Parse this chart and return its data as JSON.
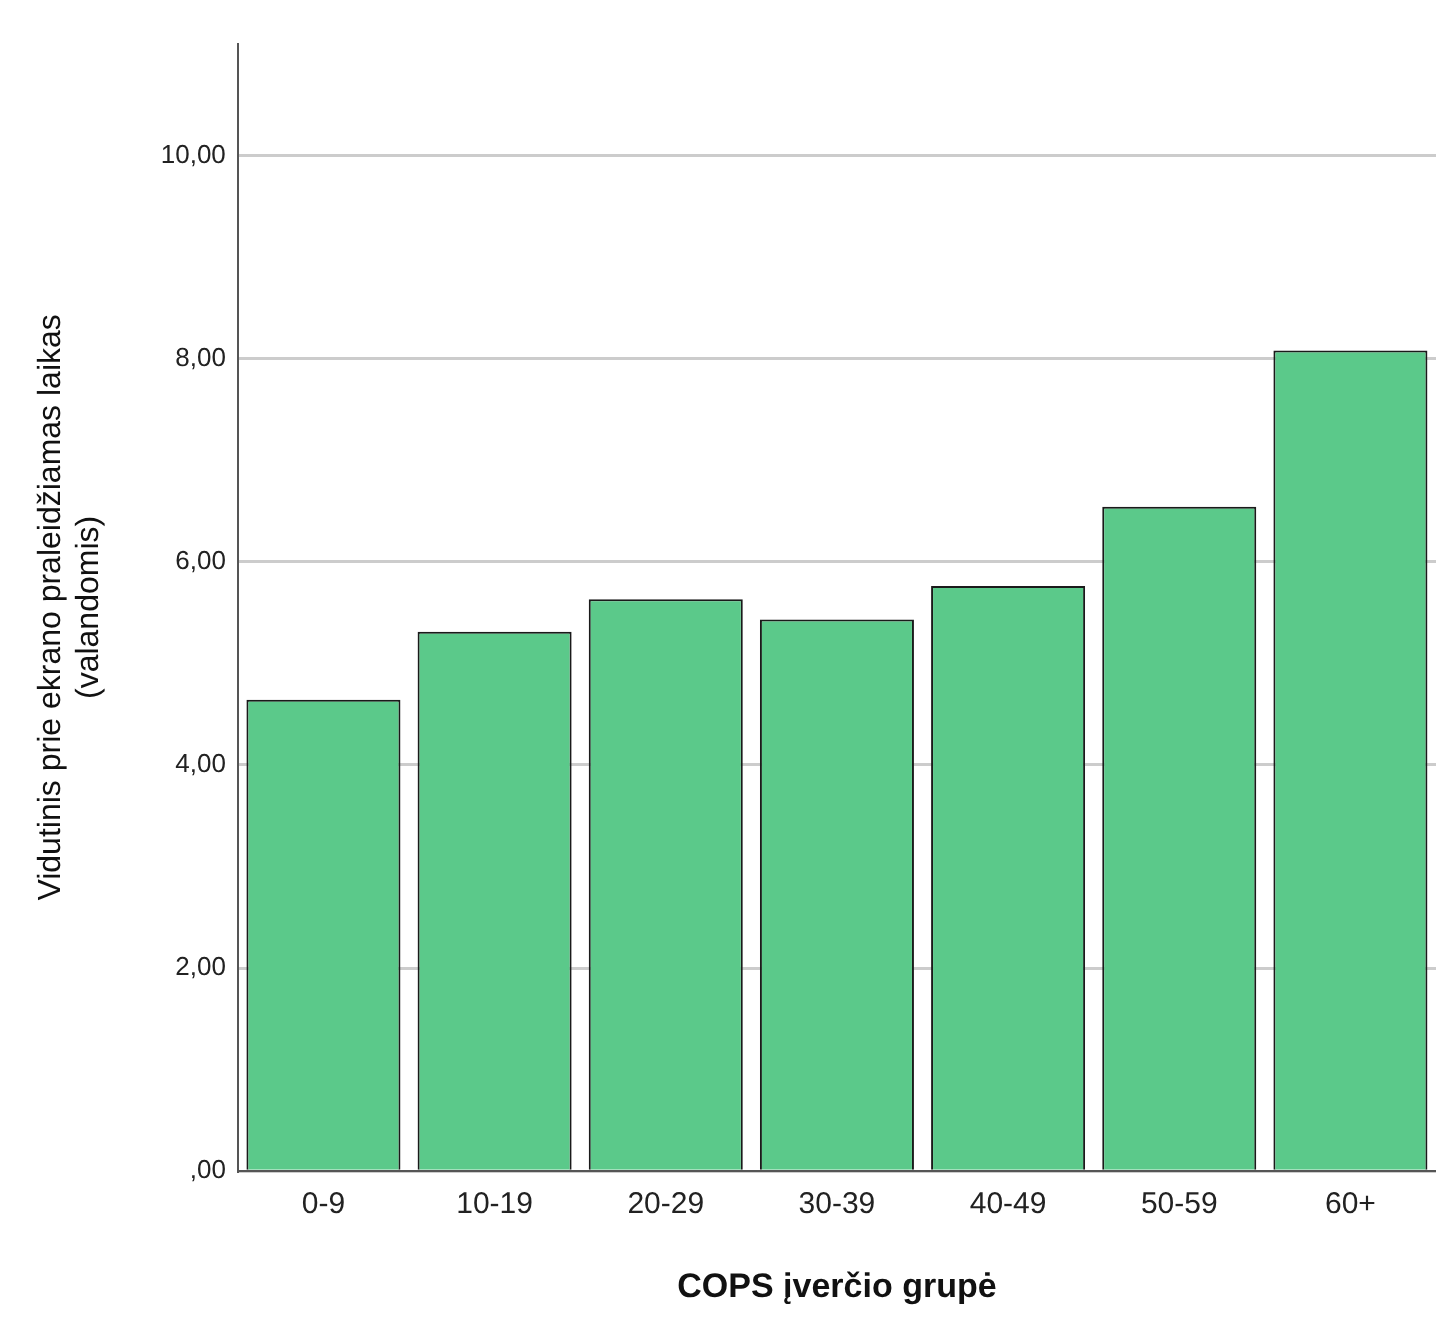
{
  "chart_data": {
    "type": "bar",
    "xlabel": "COPS įverčio grupė",
    "ylabel": "Vidutinis prie ekrano praleidžiamas laikas\n(valandomis)",
    "categories": [
      "0-9",
      "10-19",
      "20-29",
      "30-39",
      "40-49",
      "50-59",
      "60+"
    ],
    "values": [
      4.64,
      5.31,
      5.63,
      5.43,
      5.76,
      6.54,
      8.08
    ],
    "color": "#5bc98a",
    "ylim": [
      0,
      11.1
    ],
    "yticks": [
      {
        "value": 0,
        "label": ",00"
      },
      {
        "value": 2,
        "label": "2,00"
      },
      {
        "value": 4,
        "label": "4,00"
      },
      {
        "value": 6,
        "label": "6,00"
      },
      {
        "value": 8,
        "label": "8,00"
      },
      {
        "value": 10,
        "label": "10,00"
      }
    ],
    "grid": "y",
    "legend": false
  }
}
